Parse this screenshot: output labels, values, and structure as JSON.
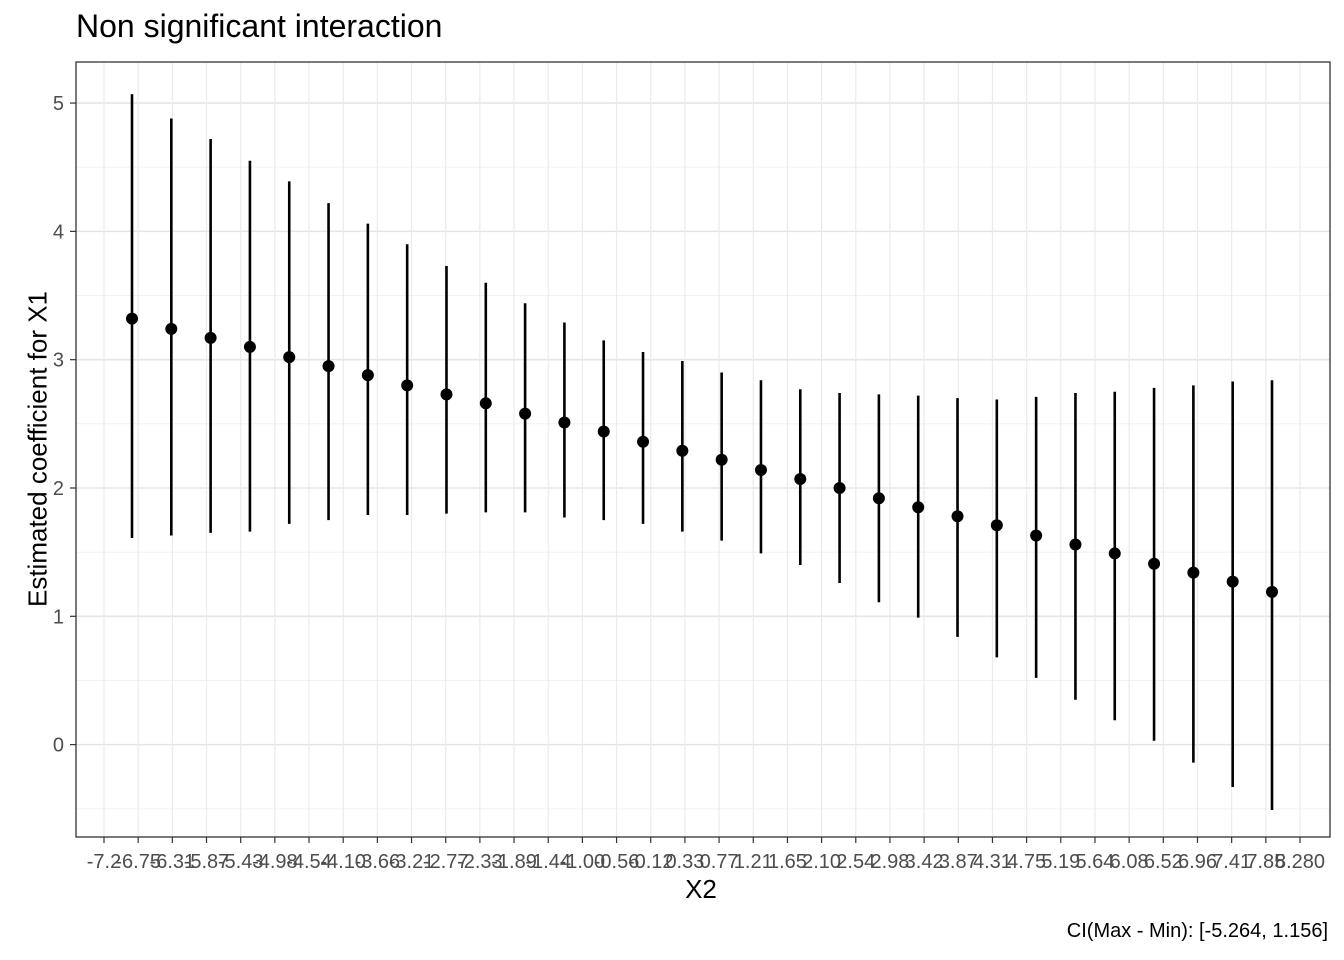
{
  "chart_data": {
    "type": "scatter",
    "title": "Non significant interaction",
    "xlabel": "X2",
    "ylabel": "Estimated coefficient for X1",
    "caption": "CI(Max - Min): [-5.264, 1.156]",
    "ylim": [
      -0.72,
      5.32
    ],
    "y_ticks": [
      0,
      1,
      2,
      3,
      4,
      5
    ],
    "grid": true,
    "x_tick_labels": [
      "-7.2",
      "-6.75",
      "-6.31",
      "-5.87",
      "-5.43",
      "-4.98",
      "-4.54",
      "-4.10",
      "-3.66",
      "-3.21",
      "-2.77",
      "-2.33",
      "-1.89",
      "-1.44",
      "-1.00",
      "-0.56",
      "-0.12",
      "0.33",
      "0.77",
      "1.21",
      "1.65",
      "2.10",
      "2.54",
      "2.98",
      "3.42",
      "3.87",
      "4.31",
      "4.75",
      "5.19",
      "5.64",
      "6.08",
      "6.52",
      "6.96",
      "7.41",
      "7.85",
      "8.280"
    ],
    "points": [
      {
        "estimate": 3.32,
        "lower": 1.61,
        "upper": 5.07
      },
      {
        "estimate": 3.24,
        "lower": 1.63,
        "upper": 4.88
      },
      {
        "estimate": 3.17,
        "lower": 1.65,
        "upper": 4.72
      },
      {
        "estimate": 3.1,
        "lower": 1.66,
        "upper": 4.55
      },
      {
        "estimate": 3.02,
        "lower": 1.72,
        "upper": 4.39
      },
      {
        "estimate": 2.95,
        "lower": 1.75,
        "upper": 4.22
      },
      {
        "estimate": 2.88,
        "lower": 1.79,
        "upper": 4.06
      },
      {
        "estimate": 2.8,
        "lower": 1.79,
        "upper": 3.9
      },
      {
        "estimate": 2.73,
        "lower": 1.8,
        "upper": 3.73
      },
      {
        "estimate": 2.66,
        "lower": 1.81,
        "upper": 3.6
      },
      {
        "estimate": 2.58,
        "lower": 1.81,
        "upper": 3.44
      },
      {
        "estimate": 2.51,
        "lower": 1.77,
        "upper": 3.29
      },
      {
        "estimate": 2.44,
        "lower": 1.75,
        "upper": 3.15
      },
      {
        "estimate": 2.36,
        "lower": 1.72,
        "upper": 3.06
      },
      {
        "estimate": 2.29,
        "lower": 1.66,
        "upper": 2.99
      },
      {
        "estimate": 2.22,
        "lower": 1.59,
        "upper": 2.9
      },
      {
        "estimate": 2.14,
        "lower": 1.49,
        "upper": 2.84
      },
      {
        "estimate": 2.07,
        "lower": 1.4,
        "upper": 2.77
      },
      {
        "estimate": 2.0,
        "lower": 1.26,
        "upper": 2.74
      },
      {
        "estimate": 1.92,
        "lower": 1.11,
        "upper": 2.73
      },
      {
        "estimate": 1.85,
        "lower": 0.99,
        "upper": 2.72
      },
      {
        "estimate": 1.78,
        "lower": 0.84,
        "upper": 2.7
      },
      {
        "estimate": 1.71,
        "lower": 0.68,
        "upper": 2.69
      },
      {
        "estimate": 1.63,
        "lower": 0.52,
        "upper": 2.71
      },
      {
        "estimate": 1.56,
        "lower": 0.35,
        "upper": 2.74
      },
      {
        "estimate": 1.49,
        "lower": 0.19,
        "upper": 2.75
      },
      {
        "estimate": 1.41,
        "lower": 0.03,
        "upper": 2.78
      },
      {
        "estimate": 1.34,
        "lower": -0.14,
        "upper": 2.8
      },
      {
        "estimate": 1.27,
        "lower": -0.33,
        "upper": 2.83
      },
      {
        "estimate": 1.19,
        "lower": -0.51,
        "upper": 2.84
      }
    ]
  }
}
